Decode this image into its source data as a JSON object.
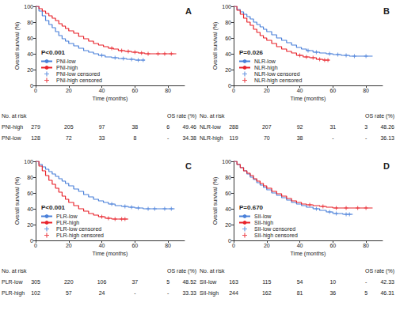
{
  "chart_data": [
    {
      "type": "step",
      "title": "A",
      "annotation": "P<0.001",
      "x_label": "Time (months)",
      "y_label": "Overall survival (%)",
      "xlim": [
        0,
        90
      ],
      "xticks": [
        0,
        20,
        40,
        60,
        80
      ],
      "ylim": [
        0,
        100
      ],
      "yticks": [
        0,
        20,
        40,
        60,
        80,
        100
      ],
      "grid": false,
      "legend": "lower left",
      "series": [
        {
          "name": "PNI-low",
          "color": "#4a80d9",
          "x": [
            0,
            2,
            4,
            6,
            8,
            10,
            12,
            14,
            16,
            18,
            20,
            23,
            26,
            29,
            32,
            35,
            38,
            42,
            46,
            50,
            55,
            60,
            66
          ],
          "values": [
            100,
            94,
            88,
            82,
            77,
            73,
            68,
            63,
            59,
            56,
            53,
            50,
            47,
            44,
            42,
            40,
            38,
            36,
            35,
            34,
            33,
            32,
            32
          ]
        },
        {
          "name": "PNI-high",
          "color": "#e8232b",
          "x": [
            0,
            2,
            4,
            6,
            8,
            10,
            12,
            14,
            16,
            18,
            20,
            23,
            26,
            29,
            32,
            35,
            38,
            41,
            44,
            47,
            50,
            54,
            58,
            62,
            66,
            72,
            85
          ],
          "values": [
            100,
            97,
            94,
            91,
            88,
            85,
            82,
            78,
            75,
            72,
            69,
            66,
            62,
            59,
            56,
            53,
            51,
            49,
            47,
            46,
            44,
            43,
            42,
            41,
            40,
            40,
            40
          ]
        },
        {
          "name": "PNI-low censored",
          "type": "scatter",
          "marker": "plus",
          "color": "#4a80d9",
          "x": [
            40,
            48,
            53,
            58,
            62,
            65
          ],
          "values": [
            38,
            35,
            34,
            33,
            32,
            32
          ]
        },
        {
          "name": "PNI-high censored",
          "type": "scatter",
          "marker": "plus",
          "color": "#e8232b",
          "x": [
            46,
            52,
            56,
            60,
            64,
            68,
            74,
            78,
            82
          ],
          "values": [
            47,
            44,
            43,
            42,
            41,
            40,
            40,
            40,
            40
          ]
        }
      ],
      "risk_table": {
        "title": "No. at risk",
        "rate_title": "OS rate (%)",
        "rows": [
          {
            "name": "PNI-high",
            "counts": [
              279,
              205,
              97,
              38,
              6
            ],
            "os_rate": 49.46
          },
          {
            "name": "PNI-low",
            "counts": [
              128,
              72,
              33,
              8,
              "-"
            ],
            "os_rate": 34.38
          }
        ]
      }
    },
    {
      "type": "step",
      "title": "B",
      "annotation": "P=0.026",
      "x_label": "Time (months)",
      "y_label": "Overall survival (%)",
      "xlim": [
        0,
        90
      ],
      "xticks": [
        0,
        20,
        40,
        60,
        80
      ],
      "ylim": [
        0,
        100
      ],
      "yticks": [
        0,
        20,
        40,
        60,
        80,
        100
      ],
      "grid": false,
      "legend": "lower left",
      "series": [
        {
          "name": "NLR-low",
          "color": "#4a80d9",
          "x": [
            0,
            2,
            4,
            6,
            8,
            10,
            12,
            14,
            16,
            18,
            20,
            23,
            26,
            29,
            32,
            35,
            38,
            41,
            44,
            48,
            52,
            56,
            60,
            65,
            70,
            76,
            84
          ],
          "values": [
            100,
            96,
            93,
            90,
            87,
            84,
            80,
            77,
            74,
            71,
            68,
            64,
            60,
            57,
            54,
            51,
            48,
            46,
            44,
            42,
            41,
            40,
            39,
            38,
            37,
            37,
            37
          ]
        },
        {
          "name": "NLR-high",
          "color": "#e8232b",
          "x": [
            0,
            2,
            4,
            6,
            8,
            10,
            12,
            14,
            16,
            18,
            20,
            23,
            26,
            29,
            32,
            35,
            38,
            42,
            46,
            50,
            54,
            58
          ],
          "values": [
            100,
            95,
            90,
            85,
            80,
            76,
            71,
            67,
            63,
            60,
            57,
            53,
            49,
            46,
            43,
            41,
            38,
            36,
            35,
            33,
            32,
            32
          ]
        },
        {
          "name": "NLR-low censored",
          "type": "scatter",
          "marker": "plus",
          "color": "#4a80d9",
          "x": [
            45,
            50,
            58,
            63,
            68,
            73,
            80
          ],
          "values": [
            44,
            42,
            40,
            39,
            38,
            37,
            37
          ]
        },
        {
          "name": "NLR-high censored",
          "type": "scatter",
          "marker": "plus",
          "color": "#e8232b",
          "x": [
            40,
            44,
            48,
            52,
            55,
            57
          ],
          "values": [
            38,
            36,
            35,
            33,
            32,
            32
          ]
        }
      ],
      "risk_table": {
        "title": "No. at risk",
        "rate_title": "OS rate (%)",
        "rows": [
          {
            "name": "NLR-low",
            "counts": [
              288,
              207,
              92,
              31,
              3
            ],
            "os_rate": 48.26
          },
          {
            "name": "NLR-high",
            "counts": [
              119,
              70,
              38,
              "-",
              "-"
            ],
            "os_rate": 36.13
          }
        ]
      }
    },
    {
      "type": "step",
      "title": "C",
      "annotation": "P<0.001",
      "x_label": "Time (months)",
      "y_label": "Overall survival (%)",
      "xlim": [
        0,
        90
      ],
      "xticks": [
        0,
        20,
        40,
        60,
        80
      ],
      "ylim": [
        0,
        100
      ],
      "yticks": [
        0,
        20,
        40,
        60,
        80,
        100
      ],
      "grid": false,
      "legend": "lower left",
      "series": [
        {
          "name": "PLR-low",
          "color": "#4a80d9",
          "x": [
            0,
            2,
            4,
            6,
            8,
            10,
            12,
            14,
            16,
            18,
            20,
            23,
            26,
            29,
            32,
            35,
            38,
            41,
            44,
            48,
            52,
            56,
            60,
            65,
            70,
            76,
            84
          ],
          "values": [
            100,
            96,
            93,
            90,
            87,
            84,
            81,
            78,
            75,
            72,
            69,
            65,
            62,
            58,
            55,
            52,
            50,
            48,
            46,
            44,
            43,
            42,
            41,
            40,
            40,
            40,
            40
          ]
        },
        {
          "name": "PLR-high",
          "color": "#e8232b",
          "x": [
            0,
            2,
            4,
            6,
            8,
            10,
            12,
            14,
            16,
            18,
            20,
            23,
            26,
            29,
            32,
            35,
            38,
            42,
            46,
            50,
            56
          ],
          "values": [
            100,
            94,
            88,
            82,
            76,
            71,
            66,
            61,
            56,
            52,
            48,
            44,
            40,
            37,
            34,
            32,
            30,
            28,
            27,
            27,
            27
          ]
        },
        {
          "name": "PLR-low censored",
          "type": "scatter",
          "marker": "plus",
          "color": "#4a80d9",
          "x": [
            46,
            54,
            58,
            62,
            68,
            72,
            78,
            82
          ],
          "values": [
            46,
            43,
            42,
            41,
            40,
            40,
            40,
            40
          ]
        },
        {
          "name": "PLR-high censored",
          "type": "scatter",
          "marker": "plus",
          "color": "#e8232b",
          "x": [
            40,
            44,
            48,
            52,
            54
          ],
          "values": [
            30,
            28,
            27,
            27,
            27
          ]
        }
      ],
      "risk_table": {
        "title": "No. at risk",
        "rate_title": "OS rate (%)",
        "rows": [
          {
            "name": "PLR-low",
            "counts": [
              305,
              220,
              106,
              37,
              5
            ],
            "os_rate": 48.52
          },
          {
            "name": "PLR-high",
            "counts": [
              102,
              57,
              24,
              "-",
              "-"
            ],
            "os_rate": 33.33
          }
        ]
      }
    },
    {
      "type": "step",
      "title": "D",
      "annotation": "P=0.670",
      "x_label": "Time (months)",
      "y_label": "Overall survival (%)",
      "xlim": [
        0,
        90
      ],
      "xticks": [
        0,
        20,
        40,
        60,
        80
      ],
      "ylim": [
        0,
        100
      ],
      "yticks": [
        0,
        20,
        40,
        60,
        80,
        100
      ],
      "grid": false,
      "legend": "lower left",
      "series": [
        {
          "name": "SII-low",
          "color": "#4a80d9",
          "x": [
            0,
            2,
            4,
            6,
            8,
            10,
            12,
            14,
            16,
            18,
            20,
            23,
            26,
            29,
            32,
            35,
            38,
            41,
            44,
            48,
            52,
            56,
            60,
            66,
            72
          ],
          "values": [
            100,
            96,
            92,
            88,
            84,
            80,
            77,
            73,
            70,
            67,
            64,
            60,
            57,
            54,
            51,
            48,
            46,
            44,
            42,
            40,
            38,
            36,
            34,
            33,
            33
          ]
        },
        {
          "name": "SII-high",
          "color": "#e8232b",
          "x": [
            0,
            2,
            4,
            6,
            8,
            10,
            12,
            14,
            16,
            18,
            20,
            23,
            26,
            29,
            32,
            35,
            38,
            41,
            44,
            48,
            52,
            56,
            60,
            66,
            72,
            84
          ],
          "values": [
            100,
            96,
            92,
            88,
            85,
            82,
            78,
            75,
            72,
            69,
            66,
            62,
            59,
            56,
            53,
            50,
            48,
            46,
            45,
            44,
            43,
            42,
            41,
            41,
            41,
            41
          ]
        },
        {
          "name": "SII-low censored",
          "type": "scatter",
          "marker": "plus",
          "color": "#4a80d9",
          "x": [
            50,
            58,
            62,
            68,
            70
          ],
          "values": [
            40,
            36,
            34,
            33,
            33
          ]
        },
        {
          "name": "SII-high censored",
          "type": "scatter",
          "marker": "plus",
          "color": "#e8232b",
          "x": [
            46,
            54,
            62,
            68,
            75,
            80
          ],
          "values": [
            45,
            43,
            41,
            41,
            41,
            41
          ]
        }
      ],
      "risk_table": {
        "title": "No. at risk",
        "rate_title": "OS rate (%)",
        "rows": [
          {
            "name": "SII-low",
            "counts": [
              163,
              115,
              54,
              10,
              "-"
            ],
            "os_rate": 42.33
          },
          {
            "name": "SII-high",
            "counts": [
              244,
              162,
              81,
              36,
              5
            ],
            "os_rate": 46.31
          }
        ]
      }
    }
  ]
}
